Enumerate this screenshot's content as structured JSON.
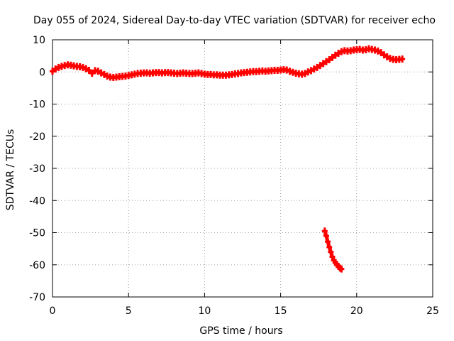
{
  "chart_data": {
    "type": "scatter",
    "title": "Day 055 of 2024, Sidereal Day-to-day VTEC variation (SDTVAR) for receiver echo",
    "xlabel": "GPS time / hours",
    "ylabel": "SDTVAR / TECUs",
    "xlim": [
      0,
      25
    ],
    "ylim": [
      -70,
      10
    ],
    "xticks": [
      0,
      5,
      10,
      15,
      20,
      25
    ],
    "yticks": [
      10,
      0,
      -10,
      -20,
      -30,
      -40,
      -50,
      -60,
      -70
    ],
    "grid": true,
    "series": [
      {
        "name": "SDTVAR",
        "color": "#ff0000",
        "marker": "plus",
        "points": [
          [
            0.0,
            0.2
          ],
          [
            0.2,
            0.9
          ],
          [
            0.4,
            1.4
          ],
          [
            0.6,
            1.7
          ],
          [
            0.8,
            2.0
          ],
          [
            1.0,
            2.2
          ],
          [
            1.2,
            2.1
          ],
          [
            1.4,
            1.9
          ],
          [
            1.6,
            1.7
          ],
          [
            1.8,
            1.6
          ],
          [
            2.0,
            1.4
          ],
          [
            2.2,
            1.0
          ],
          [
            2.4,
            0.5
          ],
          [
            2.6,
            -0.4
          ],
          [
            2.8,
            0.4
          ],
          [
            3.0,
            0.2
          ],
          [
            3.2,
            -0.3
          ],
          [
            3.4,
            -0.8
          ],
          [
            3.6,
            -1.3
          ],
          [
            3.8,
            -1.6
          ],
          [
            4.0,
            -1.7
          ],
          [
            4.2,
            -1.6
          ],
          [
            4.4,
            -1.5
          ],
          [
            4.6,
            -1.4
          ],
          [
            4.8,
            -1.3
          ],
          [
            5.0,
            -1.1
          ],
          [
            5.2,
            -0.9
          ],
          [
            5.4,
            -0.7
          ],
          [
            5.6,
            -0.5
          ],
          [
            5.8,
            -0.4
          ],
          [
            6.0,
            -0.3
          ],
          [
            6.2,
            -0.3
          ],
          [
            6.4,
            -0.4
          ],
          [
            6.6,
            -0.3
          ],
          [
            6.8,
            -0.2
          ],
          [
            7.0,
            -0.2
          ],
          [
            7.2,
            -0.3
          ],
          [
            7.4,
            -0.2
          ],
          [
            7.6,
            -0.2
          ],
          [
            7.8,
            -0.3
          ],
          [
            8.0,
            -0.4
          ],
          [
            8.2,
            -0.5
          ],
          [
            8.4,
            -0.4
          ],
          [
            8.6,
            -0.3
          ],
          [
            8.8,
            -0.4
          ],
          [
            9.0,
            -0.5
          ],
          [
            9.2,
            -0.5
          ],
          [
            9.4,
            -0.4
          ],
          [
            9.6,
            -0.3
          ],
          [
            9.8,
            -0.5
          ],
          [
            10.0,
            -0.7
          ],
          [
            10.2,
            -0.8
          ],
          [
            10.4,
            -0.8
          ],
          [
            10.6,
            -0.9
          ],
          [
            10.8,
            -0.9
          ],
          [
            11.0,
            -1.0
          ],
          [
            11.2,
            -1.0
          ],
          [
            11.4,
            -1.0
          ],
          [
            11.6,
            -0.9
          ],
          [
            11.8,
            -0.8
          ],
          [
            12.0,
            -0.6
          ],
          [
            12.2,
            -0.5
          ],
          [
            12.4,
            -0.3
          ],
          [
            12.6,
            -0.2
          ],
          [
            12.8,
            -0.1
          ],
          [
            13.0,
            0.0
          ],
          [
            13.2,
            0.1
          ],
          [
            13.4,
            0.1
          ],
          [
            13.6,
            0.2
          ],
          [
            13.8,
            0.3
          ],
          [
            14.0,
            0.2
          ],
          [
            14.2,
            0.3
          ],
          [
            14.4,
            0.4
          ],
          [
            14.6,
            0.5
          ],
          [
            14.8,
            0.5
          ],
          [
            15.0,
            0.6
          ],
          [
            15.2,
            0.7
          ],
          [
            15.4,
            0.6
          ],
          [
            15.6,
            0.2
          ],
          [
            15.8,
            -0.1
          ],
          [
            16.0,
            -0.4
          ],
          [
            16.2,
            -0.6
          ],
          [
            16.4,
            -0.7
          ],
          [
            16.6,
            -0.5
          ],
          [
            16.8,
            0.0
          ],
          [
            17.0,
            0.4
          ],
          [
            17.2,
            0.9
          ],
          [
            17.4,
            1.4
          ],
          [
            17.6,
            2.0
          ],
          [
            17.8,
            2.6
          ],
          [
            18.0,
            3.2
          ],
          [
            18.2,
            3.8
          ],
          [
            18.4,
            4.5
          ],
          [
            18.6,
            5.2
          ],
          [
            18.8,
            5.8
          ],
          [
            19.0,
            6.3
          ],
          [
            19.2,
            6.6
          ],
          [
            19.4,
            6.5
          ],
          [
            19.6,
            6.6
          ],
          [
            19.8,
            6.8
          ],
          [
            20.0,
            6.9
          ],
          [
            20.2,
            7.0
          ],
          [
            20.4,
            6.8
          ],
          [
            20.6,
            6.9
          ],
          [
            20.8,
            7.2
          ],
          [
            21.0,
            7.0
          ],
          [
            21.2,
            6.8
          ],
          [
            21.4,
            6.5
          ],
          [
            21.6,
            6.0
          ],
          [
            21.8,
            5.3
          ],
          [
            22.0,
            4.7
          ],
          [
            22.2,
            4.2
          ],
          [
            22.4,
            3.9
          ],
          [
            22.6,
            3.8
          ],
          [
            22.8,
            3.9
          ],
          [
            23.0,
            4.0
          ],
          [
            17.9,
            -49.5
          ],
          [
            18.0,
            -51.0
          ],
          [
            18.1,
            -52.8
          ],
          [
            18.2,
            -54.5
          ],
          [
            18.3,
            -56.0
          ],
          [
            18.4,
            -57.5
          ],
          [
            18.5,
            -58.6
          ],
          [
            18.6,
            -59.3
          ],
          [
            18.7,
            -59.9
          ],
          [
            18.8,
            -60.5
          ],
          [
            18.9,
            -61.0
          ],
          [
            19.0,
            -61.3
          ]
        ]
      }
    ]
  }
}
